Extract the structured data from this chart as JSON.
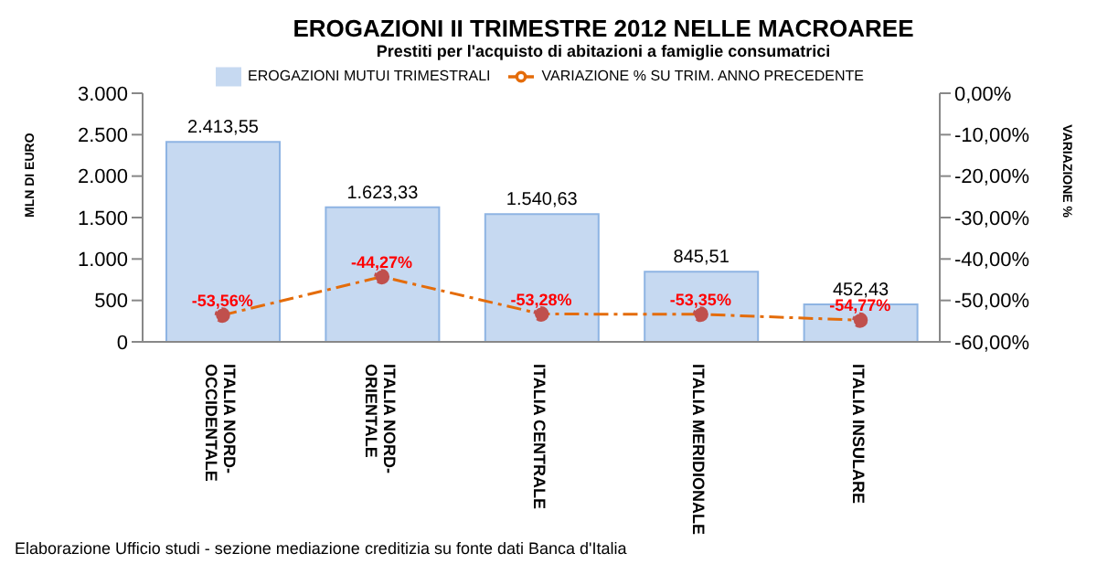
{
  "chart_data": {
    "type": "bar",
    "title": "EROGAZIONI II TRIMESTRE 2012 NELLE MACROAREE",
    "subtitle": "Prestiti per l'acquisto di abitazioni a famiglie consumatrici",
    "ylabel": "MLN DI EURO",
    "y2label": "VARIAZIONE %",
    "categories": [
      "ITALIA NORD-OCCIDENTALE",
      "ITALIA NORD-ORIENTALE",
      "ITALIA CENTRALE",
      "ITALIA MERIDIONALE",
      "ITALIA INSULARE"
    ],
    "series": [
      {
        "name": "EROGAZIONI MUTUI TRIMESTRALI",
        "color": "#c6d9f1",
        "values": [
          2413.55,
          1623.33,
          1540.63,
          845.51,
          452.43
        ],
        "value_labels": [
          "2.413,55",
          "1.623,33",
          "1.540,63",
          "845,51",
          "452,43"
        ]
      },
      {
        "name": "VARIAZIONE % SU TRIM. ANNO PRECEDENTE",
        "type": "line",
        "axis": "y2",
        "color": "#e46c0a",
        "marker": "circle",
        "line_style": "dashed",
        "values": [
          -53.56,
          -44.27,
          -53.28,
          -53.35,
          -54.77
        ],
        "value_labels": [
          "-53,56%",
          "-44,27%",
          "-53,28%",
          "-53,35%",
          "-54,77%"
        ]
      }
    ],
    "ylim": [
      0,
      3000
    ],
    "yticks": [
      0,
      {
        "value": 500,
        "label": "500"
      },
      {
        "value": 1000,
        "label": "1.000"
      },
      {
        "value": 1500,
        "label": "1.500"
      },
      {
        "value": 2000,
        "label": "2.000"
      },
      {
        "value": 2500,
        "label": "2.500"
      },
      {
        "value": 3000,
        "label": "3.000"
      }
    ],
    "y2lim": [
      -60,
      0
    ],
    "y2ticks": [
      {
        "value": 0,
        "label": "0,00%"
      },
      {
        "value": -10,
        "label": "-10,00%"
      },
      {
        "value": -20,
        "label": "-20,00%"
      },
      {
        "value": -30,
        "label": "-30,00%"
      },
      {
        "value": -40,
        "label": "-40,00%"
      },
      {
        "value": -50,
        "label": "-50,00%"
      },
      {
        "value": -60,
        "label": "-60,00%"
      }
    ],
    "legend": "top",
    "grid": false,
    "annotations": [
      "Elaborazione Ufficio studi - sezione mediazione creditizia su fonte dati Banca d'Italia"
    ]
  }
}
